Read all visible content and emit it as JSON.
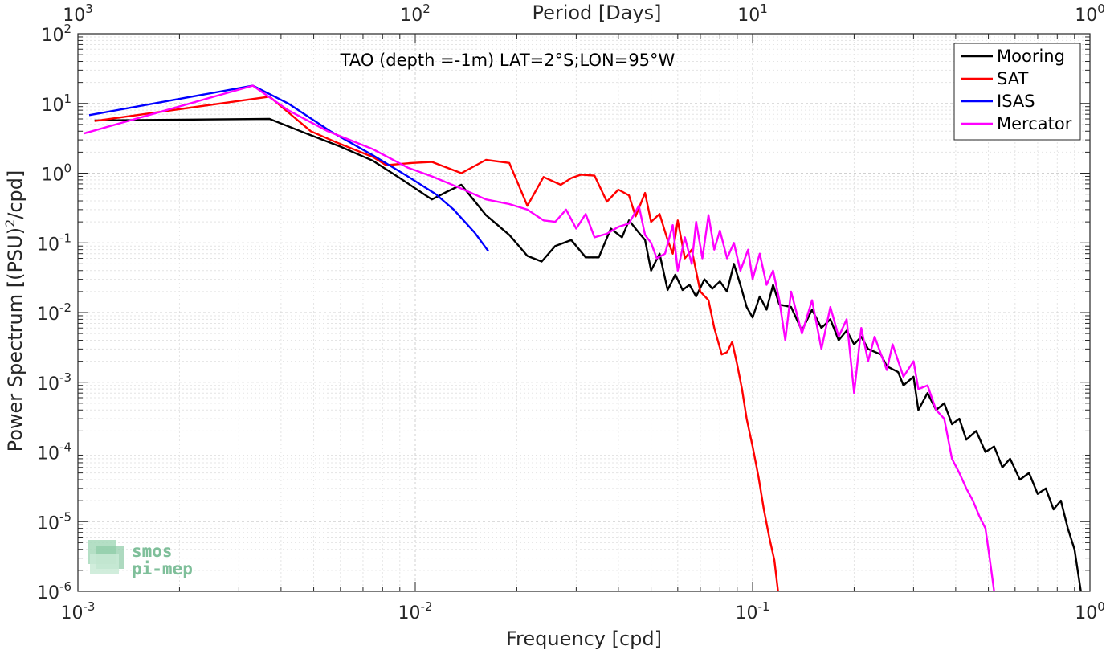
{
  "chart_data": {
    "type": "line",
    "title": "TAO (depth =-1m) LAT=2°S;LON=95°W",
    "xlabel": "Frequency [cpd]",
    "ylabel": "Power Spectrum [(PSU)",
    "ylabel_sup": "2",
    "ylabel_tail": "/cpd]",
    "x2label": "Period [Days]",
    "xscale": "log",
    "yscale": "log",
    "xlim": [
      0.001,
      1
    ],
    "ylim": [
      1e-06,
      100
    ],
    "grid": true,
    "legend_position": "top-right",
    "xticks": [
      {
        "value": 0.001,
        "base": "10",
        "exp": "-3"
      },
      {
        "value": 0.01,
        "base": "10",
        "exp": "-2"
      },
      {
        "value": 0.1,
        "base": "10",
        "exp": "-1"
      },
      {
        "value": 1,
        "base": "10",
        "exp": "0"
      }
    ],
    "yticks": [
      {
        "value": 1e-06,
        "base": "10",
        "exp": "-6"
      },
      {
        "value": 1e-05,
        "base": "10",
        "exp": "-5"
      },
      {
        "value": 0.0001,
        "base": "10",
        "exp": "-4"
      },
      {
        "value": 0.001,
        "base": "10",
        "exp": "-3"
      },
      {
        "value": 0.01,
        "base": "10",
        "exp": "-2"
      },
      {
        "value": 0.1,
        "base": "10",
        "exp": "-1"
      },
      {
        "value": 1,
        "base": "10",
        "exp": "0"
      },
      {
        "value": 10,
        "base": "10",
        "exp": "1"
      },
      {
        "value": 100,
        "base": "10",
        "exp": "2"
      }
    ],
    "x2ticks": [
      {
        "value": 0.001,
        "base": "10",
        "exp": "3"
      },
      {
        "value": 0.01,
        "base": "10",
        "exp": "2"
      },
      {
        "value": 0.1,
        "base": "10",
        "exp": "1"
      },
      {
        "value": 1,
        "base": "10",
        "exp": "0"
      }
    ],
    "series": [
      {
        "name": "Mooring",
        "color": "#000000",
        "points": [
          [
            0.00112,
            5.7
          ],
          [
            0.0037,
            6.0
          ],
          [
            0.0049,
            3.5
          ],
          [
            0.006,
            2.4
          ],
          [
            0.0075,
            1.5
          ],
          [
            0.009,
            0.85
          ],
          [
            0.0112,
            0.42
          ],
          [
            0.0125,
            0.55
          ],
          [
            0.0137,
            0.68
          ],
          [
            0.0162,
            0.25
          ],
          [
            0.019,
            0.13
          ],
          [
            0.0215,
            0.065
          ],
          [
            0.0237,
            0.054
          ],
          [
            0.026,
            0.09
          ],
          [
            0.029,
            0.11
          ],
          [
            0.032,
            0.062
          ],
          [
            0.035,
            0.062
          ],
          [
            0.038,
            0.16
          ],
          [
            0.041,
            0.12
          ],
          [
            0.043,
            0.21
          ],
          [
            0.046,
            0.14
          ],
          [
            0.048,
            0.11
          ],
          [
            0.05,
            0.04
          ],
          [
            0.053,
            0.07
          ],
          [
            0.056,
            0.021
          ],
          [
            0.059,
            0.035
          ],
          [
            0.062,
            0.021
          ],
          [
            0.065,
            0.025
          ],
          [
            0.068,
            0.017
          ],
          [
            0.072,
            0.03
          ],
          [
            0.076,
            0.022
          ],
          [
            0.08,
            0.028
          ],
          [
            0.084,
            0.02
          ],
          [
            0.088,
            0.05
          ],
          [
            0.092,
            0.025
          ],
          [
            0.096,
            0.012
          ],
          [
            0.1,
            0.0085
          ],
          [
            0.105,
            0.017
          ],
          [
            0.11,
            0.011
          ],
          [
            0.115,
            0.025
          ],
          [
            0.12,
            0.013
          ],
          [
            0.13,
            0.012
          ],
          [
            0.14,
            0.0055
          ],
          [
            0.15,
            0.011
          ],
          [
            0.16,
            0.006
          ],
          [
            0.17,
            0.008
          ],
          [
            0.18,
            0.004
          ],
          [
            0.19,
            0.0055
          ],
          [
            0.2,
            0.0035
          ],
          [
            0.21,
            0.0045
          ],
          [
            0.22,
            0.003
          ],
          [
            0.24,
            0.0025
          ],
          [
            0.25,
            0.0017
          ],
          [
            0.27,
            0.0014
          ],
          [
            0.28,
            0.0009
          ],
          [
            0.3,
            0.0012
          ],
          [
            0.31,
            0.0004
          ],
          [
            0.33,
            0.0007
          ],
          [
            0.35,
            0.0004
          ],
          [
            0.37,
            0.0005
          ],
          [
            0.39,
            0.00025
          ],
          [
            0.41,
            0.0003
          ],
          [
            0.43,
            0.00015
          ],
          [
            0.46,
            0.0002
          ],
          [
            0.49,
            0.0001
          ],
          [
            0.52,
            0.00012
          ],
          [
            0.55,
            6e-05
          ],
          [
            0.58,
            8e-05
          ],
          [
            0.62,
            4e-05
          ],
          [
            0.66,
            5e-05
          ],
          [
            0.7,
            2.5e-05
          ],
          [
            0.74,
            3e-05
          ],
          [
            0.78,
            1.5e-05
          ],
          [
            0.82,
            2e-05
          ],
          [
            0.86,
            8e-06
          ],
          [
            0.9,
            4e-06
          ],
          [
            0.94,
            1e-06
          ]
        ]
      },
      {
        "name": "SAT",
        "color": "#ff0000",
        "points": [
          [
            0.00112,
            5.6
          ],
          [
            0.0037,
            12.5
          ],
          [
            0.0049,
            4.0
          ],
          [
            0.0058,
            2.8
          ],
          [
            0.0075,
            1.7
          ],
          [
            0.0082,
            1.3
          ],
          [
            0.0098,
            1.4
          ],
          [
            0.0112,
            1.45
          ],
          [
            0.0137,
            1.0
          ],
          [
            0.0162,
            1.55
          ],
          [
            0.019,
            1.4
          ],
          [
            0.0215,
            0.34
          ],
          [
            0.024,
            0.88
          ],
          [
            0.027,
            0.68
          ],
          [
            0.029,
            0.85
          ],
          [
            0.031,
            0.95
          ],
          [
            0.034,
            0.92
          ],
          [
            0.037,
            0.39
          ],
          [
            0.04,
            0.58
          ],
          [
            0.043,
            0.48
          ],
          [
            0.045,
            0.24
          ],
          [
            0.048,
            0.52
          ],
          [
            0.05,
            0.2
          ],
          [
            0.053,
            0.26
          ],
          [
            0.056,
            0.11
          ],
          [
            0.058,
            0.07
          ],
          [
            0.06,
            0.21
          ],
          [
            0.063,
            0.06
          ],
          [
            0.066,
            0.08
          ],
          [
            0.07,
            0.02
          ],
          [
            0.074,
            0.015
          ],
          [
            0.077,
            0.006
          ],
          [
            0.081,
            0.0025
          ],
          [
            0.084,
            0.0027
          ],
          [
            0.087,
            0.0038
          ],
          [
            0.09,
            0.0018
          ],
          [
            0.093,
            0.0008
          ],
          [
            0.096,
            0.0003
          ],
          [
            0.1,
            0.00012
          ],
          [
            0.104,
            4.5e-05
          ],
          [
            0.108,
            1.5e-05
          ],
          [
            0.112,
            6e-06
          ],
          [
            0.116,
            2.8e-06
          ],
          [
            0.119,
            1e-06
          ]
        ]
      },
      {
        "name": "ISAS",
        "color": "#0000ff",
        "points": [
          [
            0.00108,
            6.8
          ],
          [
            0.0033,
            18.0
          ],
          [
            0.0042,
            10.0
          ],
          [
            0.0056,
            4.0
          ],
          [
            0.0075,
            1.8
          ],
          [
            0.0095,
            0.9
          ],
          [
            0.0115,
            0.5
          ],
          [
            0.013,
            0.3
          ],
          [
            0.015,
            0.14
          ],
          [
            0.0165,
            0.075
          ]
        ]
      },
      {
        "name": "Mercator",
        "color": "#ff00ff",
        "points": [
          [
            0.00104,
            3.7
          ],
          [
            0.0033,
            18.0
          ],
          [
            0.0042,
            8.0
          ],
          [
            0.0055,
            4.0
          ],
          [
            0.0075,
            2.2
          ],
          [
            0.0095,
            1.2
          ],
          [
            0.0112,
            0.9
          ],
          [
            0.0137,
            0.6
          ],
          [
            0.0162,
            0.42
          ],
          [
            0.019,
            0.36
          ],
          [
            0.0215,
            0.3
          ],
          [
            0.024,
            0.21
          ],
          [
            0.026,
            0.2
          ],
          [
            0.028,
            0.3
          ],
          [
            0.03,
            0.16
          ],
          [
            0.032,
            0.26
          ],
          [
            0.034,
            0.12
          ],
          [
            0.037,
            0.135
          ],
          [
            0.04,
            0.17
          ],
          [
            0.043,
            0.19
          ],
          [
            0.046,
            0.34
          ],
          [
            0.048,
            0.13
          ],
          [
            0.05,
            0.1
          ],
          [
            0.052,
            0.06
          ],
          [
            0.055,
            0.07
          ],
          [
            0.058,
            0.18
          ],
          [
            0.06,
            0.04
          ],
          [
            0.063,
            0.12
          ],
          [
            0.066,
            0.05
          ],
          [
            0.068,
            0.2
          ],
          [
            0.071,
            0.06
          ],
          [
            0.074,
            0.25
          ],
          [
            0.077,
            0.08
          ],
          [
            0.08,
            0.15
          ],
          [
            0.084,
            0.06
          ],
          [
            0.088,
            0.1
          ],
          [
            0.092,
            0.04
          ],
          [
            0.097,
            0.08
          ],
          [
            0.1,
            0.03
          ],
          [
            0.105,
            0.07
          ],
          [
            0.11,
            0.025
          ],
          [
            0.115,
            0.04
          ],
          [
            0.12,
            0.015
          ],
          [
            0.125,
            0.004
          ],
          [
            0.13,
            0.02
          ],
          [
            0.14,
            0.005
          ],
          [
            0.15,
            0.015
          ],
          [
            0.16,
            0.003
          ],
          [
            0.17,
            0.012
          ],
          [
            0.18,
            0.0045
          ],
          [
            0.19,
            0.008
          ],
          [
            0.2,
            0.0007
          ],
          [
            0.21,
            0.006
          ],
          [
            0.22,
            0.002
          ],
          [
            0.23,
            0.0045
          ],
          [
            0.25,
            0.0015
          ],
          [
            0.26,
            0.0035
          ],
          [
            0.28,
            0.0012
          ],
          [
            0.3,
            0.002
          ],
          [
            0.31,
            0.0008
          ],
          [
            0.33,
            0.0009
          ],
          [
            0.35,
            0.0004
          ],
          [
            0.37,
            0.0003
          ],
          [
            0.39,
            8e-05
          ],
          [
            0.41,
            5e-05
          ],
          [
            0.43,
            3e-05
          ],
          [
            0.45,
            2e-05
          ],
          [
            0.47,
            1.2e-05
          ],
          [
            0.49,
            8e-06
          ],
          [
            0.5,
            4e-06
          ],
          [
            0.51,
            2e-06
          ],
          [
            0.52,
            1e-06
          ]
        ]
      }
    ],
    "logo": {
      "line1": "smos",
      "line2": "pi-mep"
    }
  }
}
